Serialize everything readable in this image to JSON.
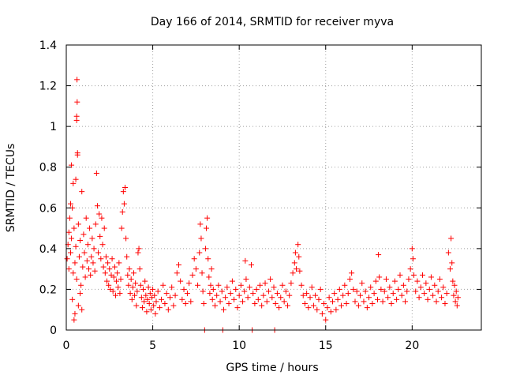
{
  "chart_data": {
    "type": "scatter",
    "title": "Day 166 of 2014, SRMTID for receiver myva",
    "xlabel": "GPS time / hours",
    "ylabel": "SRMTID / TECUs",
    "xlim": [
      0,
      24
    ],
    "ylim": [
      0,
      1.4
    ],
    "x_ticks": [
      0,
      5,
      10,
      15,
      20
    ],
    "x_tick_labels": [
      "0",
      "5",
      "10",
      "15",
      "20"
    ],
    "y_ticks": [
      0,
      0.2,
      0.4,
      0.6,
      0.8,
      1.0,
      1.2,
      1.4
    ],
    "y_tick_labels": [
      "0",
      "0.2",
      "0.4",
      "0.6",
      "0.8",
      "1",
      "1.2",
      "1.4"
    ],
    "grid": true,
    "marker": "plus",
    "color": "#ff0000",
    "series": [
      {
        "name": "SRMTID",
        "points": [
          [
            0.05,
            0.35
          ],
          [
            0.1,
            0.42
          ],
          [
            0.15,
            0.3
          ],
          [
            0.2,
            0.55
          ],
          [
            0.25,
            0.38
          ],
          [
            0.3,
            0.45
          ],
          [
            0.35,
            0.6
          ],
          [
            0.4,
            0.28
          ],
          [
            0.45,
            0.5
          ],
          [
            0.5,
            0.33
          ],
          [
            0.55,
            0.41
          ],
          [
            0.6,
            0.25
          ],
          [
            0.62,
            1.23
          ],
          [
            0.63,
            1.12
          ],
          [
            0.6,
            1.05
          ],
          [
            0.6,
            1.03
          ],
          [
            0.65,
            0.87
          ],
          [
            0.65,
            0.86
          ],
          [
            0.55,
            0.74
          ],
          [
            0.7,
            0.52
          ],
          [
            0.75,
            0.36
          ],
          [
            0.8,
            0.44
          ],
          [
            0.85,
            0.22
          ],
          [
            0.9,
            0.68
          ],
          [
            0.95,
            0.31
          ],
          [
            1.0,
            0.47
          ],
          [
            1.05,
            0.38
          ],
          [
            1.1,
            0.26
          ],
          [
            1.15,
            0.55
          ],
          [
            1.2,
            0.34
          ],
          [
            0.4,
            0.72
          ],
          [
            0.3,
            0.81
          ],
          [
            0.35,
            0.15
          ],
          [
            0.5,
            0.08
          ],
          [
            0.45,
            0.05
          ],
          [
            0.25,
            0.62
          ],
          [
            0.15,
            0.48
          ],
          [
            0.7,
            0.12
          ],
          [
            0.8,
            0.18
          ],
          [
            0.9,
            0.1
          ],
          [
            1.25,
            0.42
          ],
          [
            1.3,
            0.3
          ],
          [
            1.35,
            0.5
          ],
          [
            1.4,
            0.27
          ],
          [
            1.45,
            0.36
          ],
          [
            1.5,
            0.45
          ],
          [
            1.55,
            0.33
          ],
          [
            1.6,
            0.4
          ],
          [
            1.65,
            0.29
          ],
          [
            1.7,
            0.52
          ],
          [
            1.75,
            0.77
          ],
          [
            1.8,
            0.61
          ],
          [
            1.85,
            0.38
          ],
          [
            1.9,
            0.57
          ],
          [
            1.95,
            0.46
          ],
          [
            2.0,
            0.35
          ],
          [
            2.05,
            0.55
          ],
          [
            2.1,
            0.42
          ],
          [
            2.15,
            0.31
          ],
          [
            2.2,
            0.5
          ],
          [
            2.25,
            0.28
          ],
          [
            2.3,
            0.36
          ],
          [
            2.35,
            0.24
          ],
          [
            2.4,
            0.33
          ],
          [
            2.45,
            0.22
          ],
          [
            2.5,
            0.3
          ],
          [
            2.55,
            0.2
          ],
          [
            2.6,
            0.27
          ],
          [
            2.65,
            0.35
          ],
          [
            2.7,
            0.19
          ],
          [
            2.75,
            0.26
          ],
          [
            2.8,
            0.31
          ],
          [
            2.85,
            0.17
          ],
          [
            2.9,
            0.24
          ],
          [
            2.95,
            0.28
          ],
          [
            3.0,
            0.21
          ],
          [
            3.05,
            0.33
          ],
          [
            3.1,
            0.18
          ],
          [
            3.15,
            0.25
          ],
          [
            3.2,
            0.5
          ],
          [
            3.25,
            0.58
          ],
          [
            3.3,
            0.68
          ],
          [
            3.35,
            0.62
          ],
          [
            3.4,
            0.7
          ],
          [
            3.45,
            0.45
          ],
          [
            3.5,
            0.36
          ],
          [
            3.55,
            0.27
          ],
          [
            3.6,
            0.22
          ],
          [
            3.65,
            0.3
          ],
          [
            3.7,
            0.18
          ],
          [
            3.75,
            0.25
          ],
          [
            3.8,
            0.15
          ],
          [
            3.85,
            0.21
          ],
          [
            3.9,
            0.28
          ],
          [
            3.95,
            0.17
          ],
          [
            4.0,
            0.23
          ],
          [
            4.05,
            0.12
          ],
          [
            4.1,
            0.19
          ],
          [
            4.15,
            0.38
          ],
          [
            4.2,
            0.4
          ],
          [
            4.25,
            0.3
          ],
          [
            4.3,
            0.22
          ],
          [
            4.35,
            0.16
          ],
          [
            4.4,
            0.11
          ],
          [
            4.45,
            0.2
          ],
          [
            4.5,
            0.14
          ],
          [
            4.55,
            0.24
          ],
          [
            4.6,
            0.17
          ],
          [
            4.65,
            0.09
          ],
          [
            4.7,
            0.15
          ],
          [
            4.75,
            0.21
          ],
          [
            4.8,
            0.13
          ],
          [
            4.85,
            0.18
          ],
          [
            4.9,
            0.1
          ],
          [
            4.95,
            0.16
          ],
          [
            5.0,
            0.2
          ],
          [
            5.05,
            0.12
          ],
          [
            5.1,
            0.17
          ],
          [
            5.15,
            0.08
          ],
          [
            5.2,
            0.14
          ],
          [
            5.3,
            0.19
          ],
          [
            5.4,
            0.11
          ],
          [
            5.5,
            0.15
          ],
          [
            5.6,
            0.22
          ],
          [
            5.7,
            0.13
          ],
          [
            5.8,
            0.18
          ],
          [
            5.9,
            0.1
          ],
          [
            6.0,
            0.16
          ],
          [
            6.1,
            0.21
          ],
          [
            6.2,
            0.12
          ],
          [
            6.3,
            0.17
          ],
          [
            6.4,
            0.28
          ],
          [
            6.5,
            0.32
          ],
          [
            6.6,
            0.24
          ],
          [
            6.7,
            0.15
          ],
          [
            6.8,
            0.2
          ],
          [
            6.9,
            0.13
          ],
          [
            7.0,
            0.18
          ],
          [
            7.1,
            0.23
          ],
          [
            7.2,
            0.14
          ],
          [
            7.3,
            0.27
          ],
          [
            7.4,
            0.35
          ],
          [
            7.5,
            0.3
          ],
          [
            7.6,
            0.22
          ],
          [
            7.7,
            0.38
          ],
          [
            7.75,
            0.52
          ],
          [
            7.8,
            0.45
          ],
          [
            7.85,
            0.28
          ],
          [
            7.9,
            0.19
          ],
          [
            7.95,
            0.13
          ],
          [
            8.0,
            0.0
          ],
          [
            8.05,
            0.4
          ],
          [
            8.1,
            0.5
          ],
          [
            8.15,
            0.55
          ],
          [
            8.2,
            0.35
          ],
          [
            8.25,
            0.26
          ],
          [
            8.3,
            0.18
          ],
          [
            8.35,
            0.22
          ],
          [
            8.4,
            0.3
          ],
          [
            8.45,
            0.15
          ],
          [
            8.5,
            0.2
          ],
          [
            8.6,
            0.12
          ],
          [
            8.7,
            0.17
          ],
          [
            8.8,
            0.22
          ],
          [
            8.9,
            0.14
          ],
          [
            9.0,
            0.19
          ],
          [
            9.05,
            0.0
          ],
          [
            9.1,
            0.1
          ],
          [
            9.2,
            0.16
          ],
          [
            9.3,
            0.21
          ],
          [
            9.4,
            0.13
          ],
          [
            9.5,
            0.18
          ],
          [
            9.6,
            0.24
          ],
          [
            9.7,
            0.15
          ],
          [
            9.8,
            0.2
          ],
          [
            9.9,
            0.11
          ],
          [
            10.0,
            0.17
          ],
          [
            10.1,
            0.22
          ],
          [
            10.2,
            0.14
          ],
          [
            10.3,
            0.19
          ],
          [
            10.35,
            0.34
          ],
          [
            10.4,
            0.25
          ],
          [
            10.5,
            0.16
          ],
          [
            10.6,
            0.21
          ],
          [
            10.7,
            0.32
          ],
          [
            10.75,
            0.0
          ],
          [
            10.8,
            0.18
          ],
          [
            10.9,
            0.13
          ],
          [
            11.0,
            0.2
          ],
          [
            11.1,
            0.15
          ],
          [
            11.2,
            0.22
          ],
          [
            11.3,
            0.12
          ],
          [
            11.4,
            0.17
          ],
          [
            11.5,
            0.23
          ],
          [
            11.6,
            0.14
          ],
          [
            11.7,
            0.19
          ],
          [
            11.8,
            0.25
          ],
          [
            11.9,
            0.16
          ],
          [
            12.0,
            0.21
          ],
          [
            12.05,
            0.0
          ],
          [
            12.1,
            0.13
          ],
          [
            12.2,
            0.18
          ],
          [
            12.3,
            0.11
          ],
          [
            12.4,
            0.16
          ],
          [
            12.5,
            0.22
          ],
          [
            12.6,
            0.14
          ],
          [
            12.7,
            0.19
          ],
          [
            12.8,
            0.12
          ],
          [
            12.9,
            0.17
          ],
          [
            13.0,
            0.23
          ],
          [
            13.1,
            0.28
          ],
          [
            13.2,
            0.33
          ],
          [
            13.25,
            0.38
          ],
          [
            13.3,
            0.3
          ],
          [
            13.4,
            0.42
          ],
          [
            13.45,
            0.36
          ],
          [
            13.5,
            0.29
          ],
          [
            13.6,
            0.22
          ],
          [
            13.7,
            0.17
          ],
          [
            13.8,
            0.13
          ],
          [
            13.9,
            0.18
          ],
          [
            14.0,
            0.11
          ],
          [
            14.1,
            0.16
          ],
          [
            14.2,
            0.21
          ],
          [
            14.3,
            0.12
          ],
          [
            14.4,
            0.17
          ],
          [
            14.5,
            0.1
          ],
          [
            14.6,
            0.15
          ],
          [
            14.7,
            0.2
          ],
          [
            14.8,
            0.08
          ],
          [
            14.9,
            0.13
          ],
          [
            15.0,
            0.05
          ],
          [
            15.1,
            0.11
          ],
          [
            15.2,
            0.16
          ],
          [
            15.3,
            0.09
          ],
          [
            15.4,
            0.14
          ],
          [
            15.5,
            0.18
          ],
          [
            15.6,
            0.1
          ],
          [
            15.7,
            0.15
          ],
          [
            15.8,
            0.2
          ],
          [
            15.9,
            0.12
          ],
          [
            16.0,
            0.17
          ],
          [
            16.1,
            0.22
          ],
          [
            16.2,
            0.13
          ],
          [
            16.3,
            0.18
          ],
          [
            16.4,
            0.25
          ],
          [
            16.5,
            0.28
          ],
          [
            16.6,
            0.2
          ],
          [
            16.7,
            0.14
          ],
          [
            16.8,
            0.19
          ],
          [
            16.9,
            0.12
          ],
          [
            17.0,
            0.17
          ],
          [
            17.1,
            0.23
          ],
          [
            17.2,
            0.14
          ],
          [
            17.3,
            0.19
          ],
          [
            17.4,
            0.11
          ],
          [
            17.5,
            0.16
          ],
          [
            17.6,
            0.21
          ],
          [
            17.7,
            0.13
          ],
          [
            17.8,
            0.18
          ],
          [
            17.9,
            0.24
          ],
          [
            18.0,
            0.15
          ],
          [
            18.05,
            0.37
          ],
          [
            18.1,
            0.26
          ],
          [
            18.2,
            0.2
          ],
          [
            18.3,
            0.14
          ],
          [
            18.4,
            0.19
          ],
          [
            18.5,
            0.25
          ],
          [
            18.6,
            0.16
          ],
          [
            18.7,
            0.21
          ],
          [
            18.8,
            0.13
          ],
          [
            18.9,
            0.18
          ],
          [
            19.0,
            0.24
          ],
          [
            19.1,
            0.15
          ],
          [
            19.2,
            0.2
          ],
          [
            19.3,
            0.27
          ],
          [
            19.4,
            0.17
          ],
          [
            19.5,
            0.22
          ],
          [
            19.6,
            0.14
          ],
          [
            19.7,
            0.19
          ],
          [
            19.8,
            0.25
          ],
          [
            19.9,
            0.3
          ],
          [
            20.0,
            0.4
          ],
          [
            20.05,
            0.35
          ],
          [
            20.1,
            0.27
          ],
          [
            20.2,
            0.19
          ],
          [
            20.3,
            0.24
          ],
          [
            20.4,
            0.16
          ],
          [
            20.5,
            0.21
          ],
          [
            20.6,
            0.27
          ],
          [
            20.7,
            0.18
          ],
          [
            20.8,
            0.23
          ],
          [
            20.9,
            0.15
          ],
          [
            21.0,
            0.2
          ],
          [
            21.1,
            0.26
          ],
          [
            21.2,
            0.17
          ],
          [
            21.3,
            0.22
          ],
          [
            21.4,
            0.14
          ],
          [
            21.5,
            0.19
          ],
          [
            21.6,
            0.25
          ],
          [
            21.7,
            0.16
          ],
          [
            21.8,
            0.21
          ],
          [
            21.9,
            0.13
          ],
          [
            22.0,
            0.18
          ],
          [
            22.1,
            0.38
          ],
          [
            22.2,
            0.3
          ],
          [
            22.25,
            0.45
          ],
          [
            22.3,
            0.33
          ],
          [
            22.35,
            0.24
          ],
          [
            22.4,
            0.17
          ],
          [
            22.45,
            0.22
          ],
          [
            22.5,
            0.14
          ],
          [
            22.55,
            0.19
          ],
          [
            22.6,
            0.12
          ],
          [
            22.65,
            0.16
          ]
        ]
      }
    ]
  }
}
